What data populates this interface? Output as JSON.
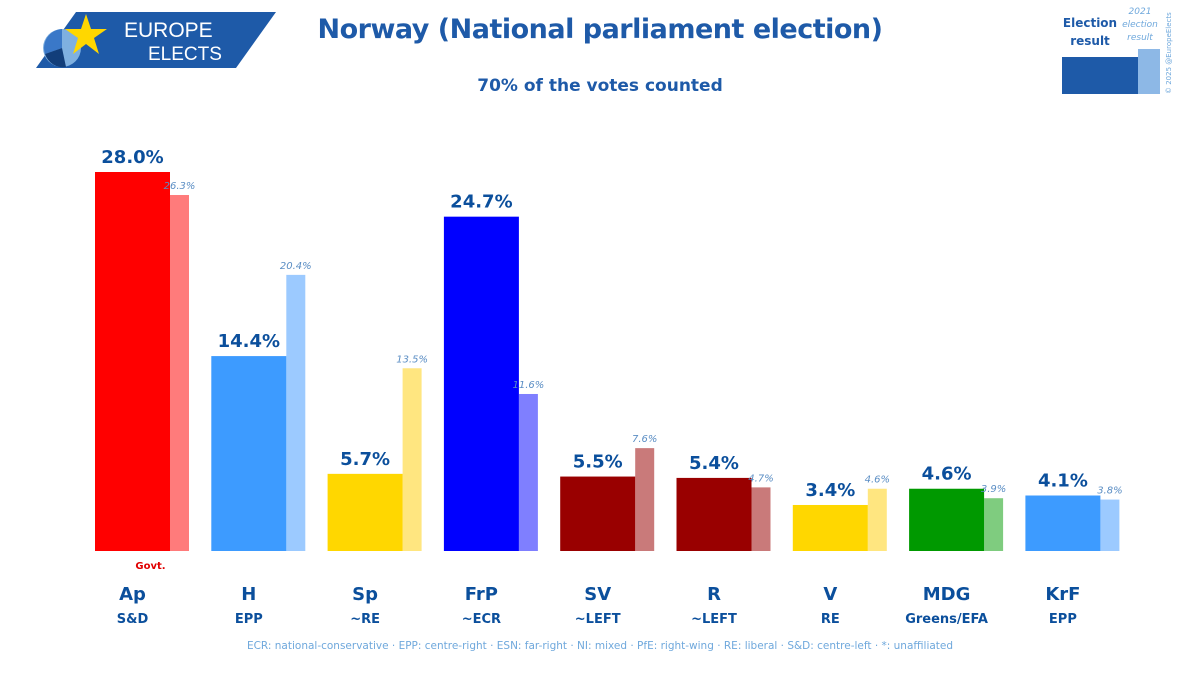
{
  "logo": {
    "line1": "EUROPE",
    "line2": "ELECTS"
  },
  "title": "Norway (National parliament election)",
  "subtitle": "70% of the votes counted",
  "legend": {
    "current_label": [
      "Election",
      "result"
    ],
    "previous_label": [
      "2021",
      "election",
      "result"
    ],
    "copyright": "© 2025 @EuropeElects"
  },
  "footer": "ECR: national-conservative · EPP: centre-right · ESN: far-right · NI: mixed · PfE: right-wing · RE: liberal · S&D: centre-left · *: unaffiliated",
  "govt_label": "Govt.",
  "colors": {
    "title": "#1e5aa8",
    "label": "#0b4f9c",
    "prev_label": "#5b8ec4",
    "govt": "#e00000"
  },
  "chart_data": {
    "type": "bar",
    "title": "Norway (National parliament election)",
    "subtitle": "70% of the votes counted",
    "categories": [
      "Ap",
      "H",
      "Sp",
      "FrP",
      "SV",
      "R",
      "V",
      "MDG",
      "KrF"
    ],
    "groups": [
      "S&D",
      "EPP",
      "~RE",
      "~ECR",
      "~LEFT",
      "~LEFT",
      "RE",
      "Greens/EFA",
      "EPP"
    ],
    "series": [
      {
        "name": "Election result",
        "values": [
          28.0,
          14.4,
          5.7,
          24.7,
          5.5,
          5.4,
          3.4,
          4.6,
          4.1
        ],
        "labels": [
          "28.0%",
          "14.4%",
          "5.7%",
          "24.7%",
          "5.5%",
          "5.4%",
          "3.4%",
          "4.6%",
          "4.1%"
        ]
      },
      {
        "name": "2021 election result",
        "values": [
          26.3,
          20.4,
          13.5,
          11.6,
          7.6,
          4.7,
          4.6,
          3.9,
          3.8
        ],
        "labels": [
          "26.3%",
          "20.4%",
          "13.5%",
          "11.6%",
          "7.6%",
          "4.7%",
          "4.6%",
          "3.9%",
          "3.8%"
        ]
      }
    ],
    "colors": [
      "#ff0000",
      "#3d9bff",
      "#ffd700",
      "#0000ff",
      "#990000",
      "#990000",
      "#ffd700",
      "#009900",
      "#3d9bff"
    ],
    "prev_colors": [
      "#ff7b7b",
      "#9ccaff",
      "#ffe680",
      "#7f7fff",
      "#c97a7a",
      "#c97a7a",
      "#ffe680",
      "#7fcc7f",
      "#9ccaff"
    ],
    "government": [
      "Ap"
    ],
    "ylim": [
      0,
      28.0
    ],
    "grid": false
  }
}
